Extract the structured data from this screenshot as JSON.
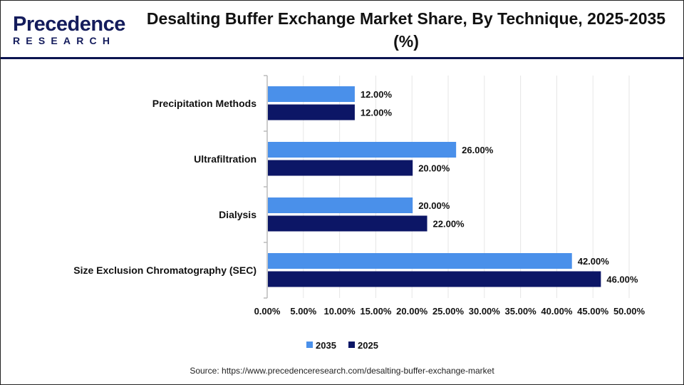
{
  "logo": {
    "line1": "Precedence",
    "line2": "RESEARCH"
  },
  "title": "Desalting Buffer Exchange Market Share, By Technique, 2025-2035 (%)",
  "source": "Source: https://www.precedenceresearch.com/desalting-buffer-exchange-market",
  "chart_data": {
    "type": "bar",
    "orientation": "horizontal",
    "title": "Desalting Buffer Exchange Market Share, By Technique, 2025-2035 (%)",
    "categories": [
      "Precipitation Methods",
      "Ultrafiltration",
      "Dialysis",
      "Size Exclusion Chromatography (SEC)"
    ],
    "series": [
      {
        "name": "2035",
        "color": "#4a90ea",
        "values": [
          12,
          26,
          20,
          42
        ],
        "labels": [
          "12.00%",
          "26.00%",
          "20.00%",
          "42.00%"
        ]
      },
      {
        "name": "2025",
        "color": "#0c1666",
        "values": [
          12,
          20,
          22,
          46
        ],
        "labels": [
          "12.00%",
          "20.00%",
          "22.00%",
          "46.00%"
        ]
      }
    ],
    "xlim": [
      0,
      50
    ],
    "xticks": [
      "0.00%",
      "5.00%",
      "10.00%",
      "15.00%",
      "20.00%",
      "25.00%",
      "30.00%",
      "35.00%",
      "40.00%",
      "45.00%",
      "50.00%"
    ],
    "grid": true,
    "legend": "bottom"
  }
}
